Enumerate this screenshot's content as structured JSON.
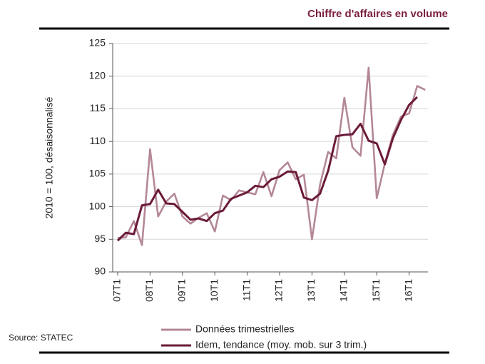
{
  "chart_data": {
    "type": "line",
    "title": "Chiffre d'affaires en volume",
    "y_label": "2010 = 100, désaisonnalisé",
    "source": "Source: STATEC",
    "categories": [
      "07T1",
      null,
      null,
      null,
      "08T1",
      null,
      null,
      null,
      "09T1",
      null,
      null,
      null,
      "10T1",
      null,
      null,
      null,
      "11T1",
      null,
      null,
      null,
      "12T1",
      null,
      null,
      null,
      "13T1",
      null,
      null,
      null,
      "14T1",
      null,
      null,
      null,
      "15T1",
      null,
      null,
      null,
      "16T1",
      null,
      null
    ],
    "series": [
      {
        "name": "Données trimestrielles",
        "color": "#b48896",
        "values": [
          95.2,
          95.3,
          97.8,
          94.1,
          108.8,
          98.5,
          100.8,
          102.0,
          98.5,
          97.4,
          98.3,
          99.0,
          96.2,
          101.7,
          101.0,
          102.5,
          102.2,
          101.9,
          105.3,
          101.6,
          105.6,
          106.8,
          104.2,
          104.9,
          95.0,
          103.4,
          108.4,
          107.4,
          116.7,
          109.1,
          107.8,
          121.3,
          101.3,
          106.6,
          111.0,
          113.8,
          114.3,
          118.5,
          117.9
        ]
      },
      {
        "name": "Idem, tendance (moy. mob. sur 3 trim.)",
        "color": "#6b1a3a",
        "values": [
          94.8,
          96.0,
          95.8,
          100.2,
          100.4,
          102.6,
          100.5,
          100.4,
          99.2,
          98.0,
          98.2,
          97.8,
          99.0,
          99.4,
          101.2,
          101.7,
          102.2,
          103.2,
          103.0,
          104.2,
          104.6,
          105.4,
          105.3,
          101.4,
          101.0,
          102.0,
          105.5,
          110.8,
          111.0,
          111.1,
          112.7,
          110.1,
          109.7,
          106.5,
          110.5,
          113.3,
          115.6,
          116.8,
          null
        ]
      }
    ],
    "ylim": [
      90,
      125
    ],
    "yticks": [
      90,
      95,
      100,
      105,
      110,
      115,
      120,
      125
    ],
    "grid": true,
    "legend": "bottom"
  }
}
